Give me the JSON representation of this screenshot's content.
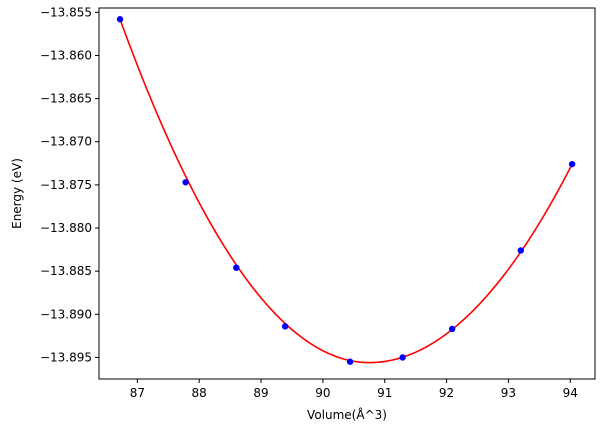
{
  "chart_data": {
    "type": "scatter",
    "title": "",
    "xlabel": "Volume(Å^3)",
    "ylabel": "Energy (eV)",
    "xlim": [
      86.38,
      94.4
    ],
    "ylim": [
      -13.8975,
      -13.8545
    ],
    "xticks": [
      87,
      88,
      89,
      90,
      91,
      92,
      93,
      94
    ],
    "yticks": [
      -13.855,
      -13.86,
      -13.865,
      -13.87,
      -13.875,
      -13.88,
      -13.885,
      -13.89,
      -13.895
    ],
    "xtick_labels": [
      "87",
      "88",
      "89",
      "90",
      "91",
      "92",
      "93",
      "94"
    ],
    "ytick_labels": [
      "−13.855",
      "−13.860",
      "−13.865",
      "−13.870",
      "−13.875",
      "−13.880",
      "−13.885",
      "−13.890",
      "−13.895"
    ],
    "grid": false,
    "series": [
      {
        "kind": "points",
        "color": "#0000ff",
        "x": [
          86.72,
          87.78,
          88.6,
          89.39,
          90.44,
          91.29,
          92.09,
          93.2,
          94.03
        ],
        "y": [
          -13.8558,
          -13.8747,
          -13.8846,
          -13.8914,
          -13.8955,
          -13.895,
          -13.8917,
          -13.8826,
          -13.8726
        ]
      },
      {
        "kind": "fit-curve",
        "color": "#ff0000",
        "x_range": [
          86.72,
          94.03
        ],
        "min_x": 90.75,
        "min_y": -13.8956,
        "start_y": -13.8558,
        "end_y": -13.8726
      }
    ]
  }
}
